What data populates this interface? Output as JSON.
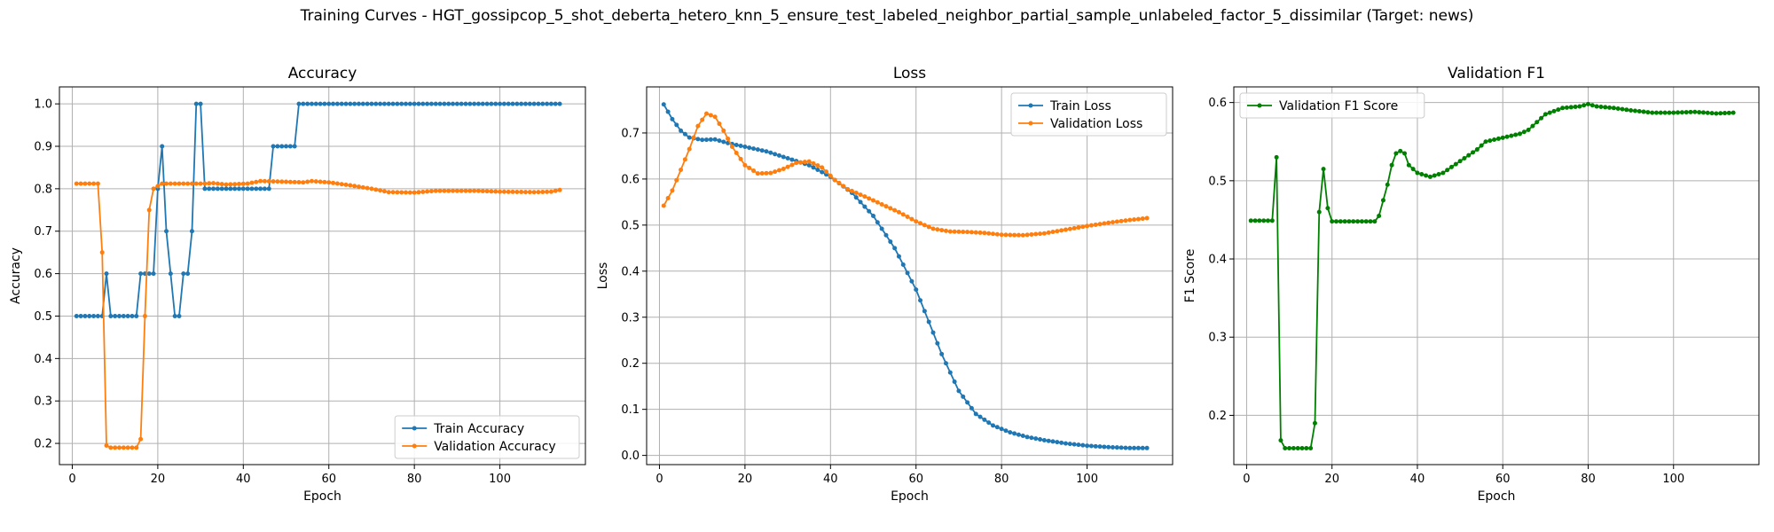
{
  "suptitle": "Training Curves - HGT_gossipcop_5_shot_deberta_hetero_knn_5_ensure_test_labeled_neighbor_partial_sample_unlabeled_factor_5_dissimilar (Target: news)",
  "colors": {
    "train": "#1f77b4",
    "validation": "#ff7f0e",
    "f1": "#008000",
    "grid": "#b0b0b0"
  },
  "chart_data": [
    {
      "type": "line",
      "title": "Accuracy",
      "xlabel": "Epoch",
      "ylabel": "Accuracy",
      "xlim": [
        -3,
        120
      ],
      "ylim": [
        0.15,
        1.04
      ],
      "xticks": [
        0,
        20,
        40,
        60,
        80,
        100
      ],
      "yticks": [
        0.2,
        0.3,
        0.4,
        0.5,
        0.6,
        0.7,
        0.8,
        0.9,
        1.0
      ],
      "ytick_labels": [
        "0.2",
        "0.3",
        "0.4",
        "0.5",
        "0.6",
        "0.7",
        "0.8",
        "0.9",
        "1.0"
      ],
      "grid": true,
      "legend": "bottom-right",
      "series": [
        {
          "name": "Train Accuracy",
          "color": "#1f77b4",
          "segments": [
            [
              1,
              0.5
            ],
            [
              7,
              0.5
            ],
            [
              8,
              0.6
            ],
            [
              9,
              0.5
            ],
            [
              15,
              0.5
            ],
            [
              16,
              0.6
            ],
            [
              19,
              0.6
            ],
            [
              20,
              0.8
            ],
            [
              21,
              0.9
            ],
            [
              22,
              0.7
            ],
            [
              23,
              0.6
            ],
            [
              24,
              0.5
            ],
            [
              25,
              0.5
            ],
            [
              26,
              0.6
            ],
            [
              27,
              0.6
            ],
            [
              28,
              0.7
            ],
            [
              29,
              1.0
            ],
            [
              30,
              1.0
            ],
            [
              31,
              0.8
            ],
            [
              46,
              0.8
            ],
            [
              47,
              0.9
            ],
            [
              52,
              0.9
            ],
            [
              53,
              1.0
            ],
            [
              114,
              1.0
            ]
          ]
        },
        {
          "name": "Validation Accuracy",
          "color": "#ff7f0e",
          "segments": [
            [
              1,
              0.812
            ],
            [
              6,
              0.812
            ],
            [
              7,
              0.65
            ],
            [
              8,
              0.195
            ],
            [
              9,
              0.19
            ],
            [
              15,
              0.19
            ],
            [
              16,
              0.21
            ],
            [
              17,
              0.5
            ],
            [
              18,
              0.75
            ],
            [
              19,
              0.8
            ],
            [
              21,
              0.812
            ],
            [
              30,
              0.812
            ],
            [
              33,
              0.813
            ],
            [
              36,
              0.81
            ],
            [
              41,
              0.812
            ],
            [
              44,
              0.818
            ],
            [
              48,
              0.817
            ],
            [
              54,
              0.815
            ],
            [
              56,
              0.818
            ],
            [
              60,
              0.815
            ],
            [
              65,
              0.808
            ],
            [
              70,
              0.8
            ],
            [
              74,
              0.792
            ],
            [
              80,
              0.791
            ],
            [
              85,
              0.795
            ],
            [
              95,
              0.795
            ],
            [
              100,
              0.793
            ],
            [
              108,
              0.792
            ],
            [
              112,
              0.793
            ],
            [
              114,
              0.797
            ]
          ]
        }
      ]
    },
    {
      "type": "line",
      "title": "Loss",
      "xlabel": "Epoch",
      "ylabel": "Loss",
      "xlim": [
        -3,
        120
      ],
      "ylim": [
        -0.02,
        0.8
      ],
      "xticks": [
        0,
        20,
        40,
        60,
        80,
        100
      ],
      "yticks": [
        0.0,
        0.1,
        0.2,
        0.3,
        0.4,
        0.5,
        0.6,
        0.7
      ],
      "ytick_labels": [
        "0.0",
        "0.1",
        "0.2",
        "0.3",
        "0.4",
        "0.5",
        "0.6",
        "0.7"
      ],
      "grid": true,
      "legend": "top-right",
      "series": [
        {
          "name": "Train Loss",
          "color": "#1f77b4",
          "segments": [
            [
              1,
              0.762
            ],
            [
              3,
              0.73
            ],
            [
              5,
              0.705
            ],
            [
              7,
              0.69
            ],
            [
              10,
              0.685
            ],
            [
              13,
              0.686
            ],
            [
              16,
              0.678
            ],
            [
              20,
              0.67
            ],
            [
              25,
              0.66
            ],
            [
              30,
              0.645
            ],
            [
              35,
              0.63
            ],
            [
              40,
              0.605
            ],
            [
              45,
              0.57
            ],
            [
              50,
              0.52
            ],
            [
              55,
              0.45
            ],
            [
              60,
              0.36
            ],
            [
              63,
              0.29
            ],
            [
              66,
              0.22
            ],
            [
              70,
              0.14
            ],
            [
              74,
              0.09
            ],
            [
              78,
              0.065
            ],
            [
              82,
              0.05
            ],
            [
              86,
              0.04
            ],
            [
              90,
              0.033
            ],
            [
              95,
              0.026
            ],
            [
              100,
              0.021
            ],
            [
              105,
              0.018
            ],
            [
              110,
              0.016
            ],
            [
              114,
              0.016
            ]
          ]
        },
        {
          "name": "Validation Loss",
          "color": "#ff7f0e",
          "segments": [
            [
              1,
              0.542
            ],
            [
              3,
              0.575
            ],
            [
              5,
              0.62
            ],
            [
              7,
              0.665
            ],
            [
              9,
              0.715
            ],
            [
              11,
              0.742
            ],
            [
              13,
              0.735
            ],
            [
              15,
              0.705
            ],
            [
              17,
              0.67
            ],
            [
              20,
              0.63
            ],
            [
              23,
              0.612
            ],
            [
              26,
              0.613
            ],
            [
              29,
              0.622
            ],
            [
              32,
              0.635
            ],
            [
              35,
              0.638
            ],
            [
              38,
              0.625
            ],
            [
              41,
              0.598
            ],
            [
              44,
              0.578
            ],
            [
              48,
              0.562
            ],
            [
              52,
              0.545
            ],
            [
              56,
              0.528
            ],
            [
              60,
              0.508
            ],
            [
              64,
              0.492
            ],
            [
              68,
              0.486
            ],
            [
              72,
              0.485
            ],
            [
              76,
              0.483
            ],
            [
              80,
              0.479
            ],
            [
              85,
              0.478
            ],
            [
              90,
              0.482
            ],
            [
              95,
              0.49
            ],
            [
              100,
              0.498
            ],
            [
              105,
              0.505
            ],
            [
              110,
              0.511
            ],
            [
              114,
              0.515
            ]
          ]
        }
      ]
    },
    {
      "type": "line",
      "title": "Validation F1",
      "xlabel": "Epoch",
      "ylabel": "F1 Score",
      "xlim": [
        -3,
        120
      ],
      "ylim": [
        0.137,
        0.62
      ],
      "xticks": [
        0,
        20,
        40,
        60,
        80,
        100
      ],
      "yticks": [
        0.2,
        0.3,
        0.4,
        0.5,
        0.6
      ],
      "ytick_labels": [
        "0.2",
        "0.3",
        "0.4",
        "0.5",
        "0.6"
      ],
      "grid": true,
      "legend": "top-left",
      "series": [
        {
          "name": "Validation F1 Score",
          "color": "#008000",
          "segments": [
            [
              1,
              0.449
            ],
            [
              6,
              0.449
            ],
            [
              7,
              0.53
            ],
            [
              8,
              0.168
            ],
            [
              9,
              0.158
            ],
            [
              15,
              0.158
            ],
            [
              16,
              0.19
            ],
            [
              17,
              0.46
            ],
            [
              18,
              0.515
            ],
            [
              19,
              0.465
            ],
            [
              20,
              0.448
            ],
            [
              30,
              0.448
            ],
            [
              31,
              0.455
            ],
            [
              32,
              0.475
            ],
            [
              33,
              0.495
            ],
            [
              34,
              0.52
            ],
            [
              35,
              0.535
            ],
            [
              36,
              0.538
            ],
            [
              37,
              0.535
            ],
            [
              38,
              0.52
            ],
            [
              40,
              0.51
            ],
            [
              43,
              0.505
            ],
            [
              46,
              0.51
            ],
            [
              50,
              0.525
            ],
            [
              54,
              0.54
            ],
            [
              56,
              0.55
            ],
            [
              60,
              0.555
            ],
            [
              64,
              0.56
            ],
            [
              66,
              0.565
            ],
            [
              68,
              0.575
            ],
            [
              70,
              0.585
            ],
            [
              74,
              0.593
            ],
            [
              78,
              0.595
            ],
            [
              80,
              0.598
            ],
            [
              82,
              0.595
            ],
            [
              86,
              0.593
            ],
            [
              90,
              0.59
            ],
            [
              95,
              0.587
            ],
            [
              100,
              0.587
            ],
            [
              105,
              0.588
            ],
            [
              110,
              0.586
            ],
            [
              114,
              0.587
            ]
          ]
        }
      ]
    }
  ]
}
